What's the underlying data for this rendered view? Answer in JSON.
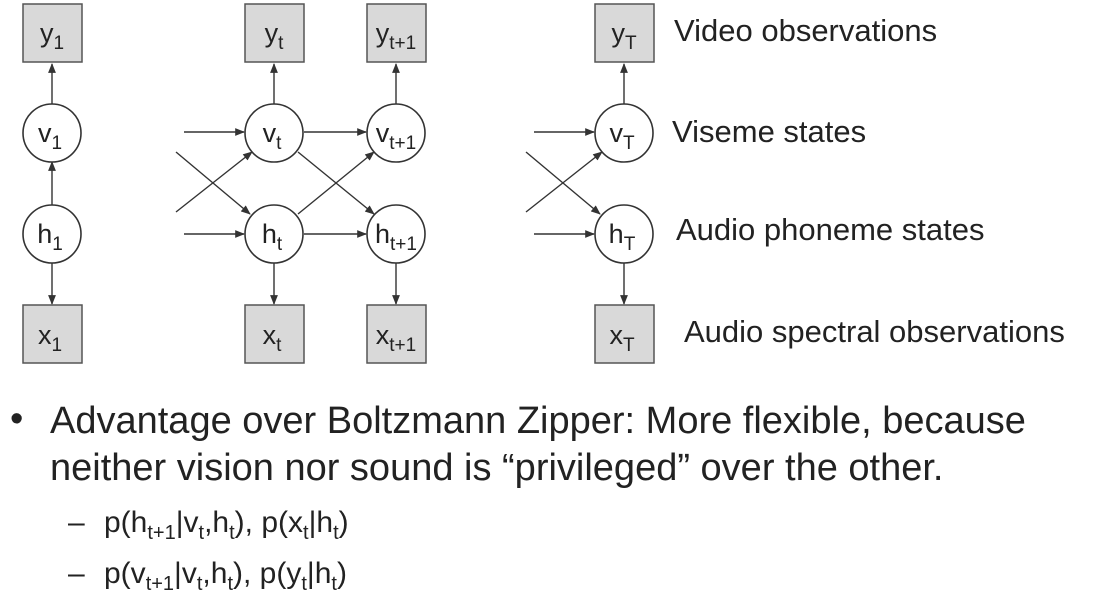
{
  "diagram": {
    "nodes": [
      {
        "id": "y1",
        "base": "y",
        "sub": "1"
      },
      {
        "id": "yt",
        "base": "y",
        "sub": "t"
      },
      {
        "id": "yt1",
        "base": "y",
        "sub": "t+1"
      },
      {
        "id": "yT",
        "base": "y",
        "sub": "T"
      },
      {
        "id": "v1",
        "base": "v",
        "sub": "1"
      },
      {
        "id": "vt",
        "base": "v",
        "sub": "t"
      },
      {
        "id": "vt1",
        "base": "v",
        "sub": "t+1"
      },
      {
        "id": "vT",
        "base": "v",
        "sub": "T"
      },
      {
        "id": "h1",
        "base": "h",
        "sub": "1"
      },
      {
        "id": "ht",
        "base": "h",
        "sub": "t"
      },
      {
        "id": "ht1",
        "base": "h",
        "sub": "t+1"
      },
      {
        "id": "hT",
        "base": "h",
        "sub": "T"
      },
      {
        "id": "x1",
        "base": "x",
        "sub": "1"
      },
      {
        "id": "xt",
        "base": "x",
        "sub": "t"
      },
      {
        "id": "xt1",
        "base": "x",
        "sub": "t+1"
      },
      {
        "id": "xT",
        "base": "x",
        "sub": "T"
      }
    ],
    "row_labels": {
      "video": "Video observations",
      "viseme": "Viseme states",
      "audio_phoneme": "Audio phoneme states",
      "audio_spectral": "Audio spectral observations"
    }
  },
  "bullet": {
    "marker": "•",
    "line1": "Advantage over Boltzmann Zipper: More flexible, because",
    "line2": "neither vision nor sound is “privileged” over the other."
  },
  "subitems": {
    "dash": "–",
    "item1": {
      "p1": "p(h",
      "s1": "t+1",
      "p2": "|v",
      "s2": "t",
      "p3": ",h",
      "s3": "t",
      "p4": "), p(x",
      "s4": "t",
      "p5": "|h",
      "s5": "t",
      "p6": ")"
    },
    "item2": {
      "p1": "p(v",
      "s1": "t+1",
      "p2": "|v",
      "s2": "t",
      "p3": ",h",
      "s3": "t",
      "p4": "), p(y",
      "s4": "t",
      "p5": "|h",
      "s5": "t",
      "p6": ")"
    }
  }
}
